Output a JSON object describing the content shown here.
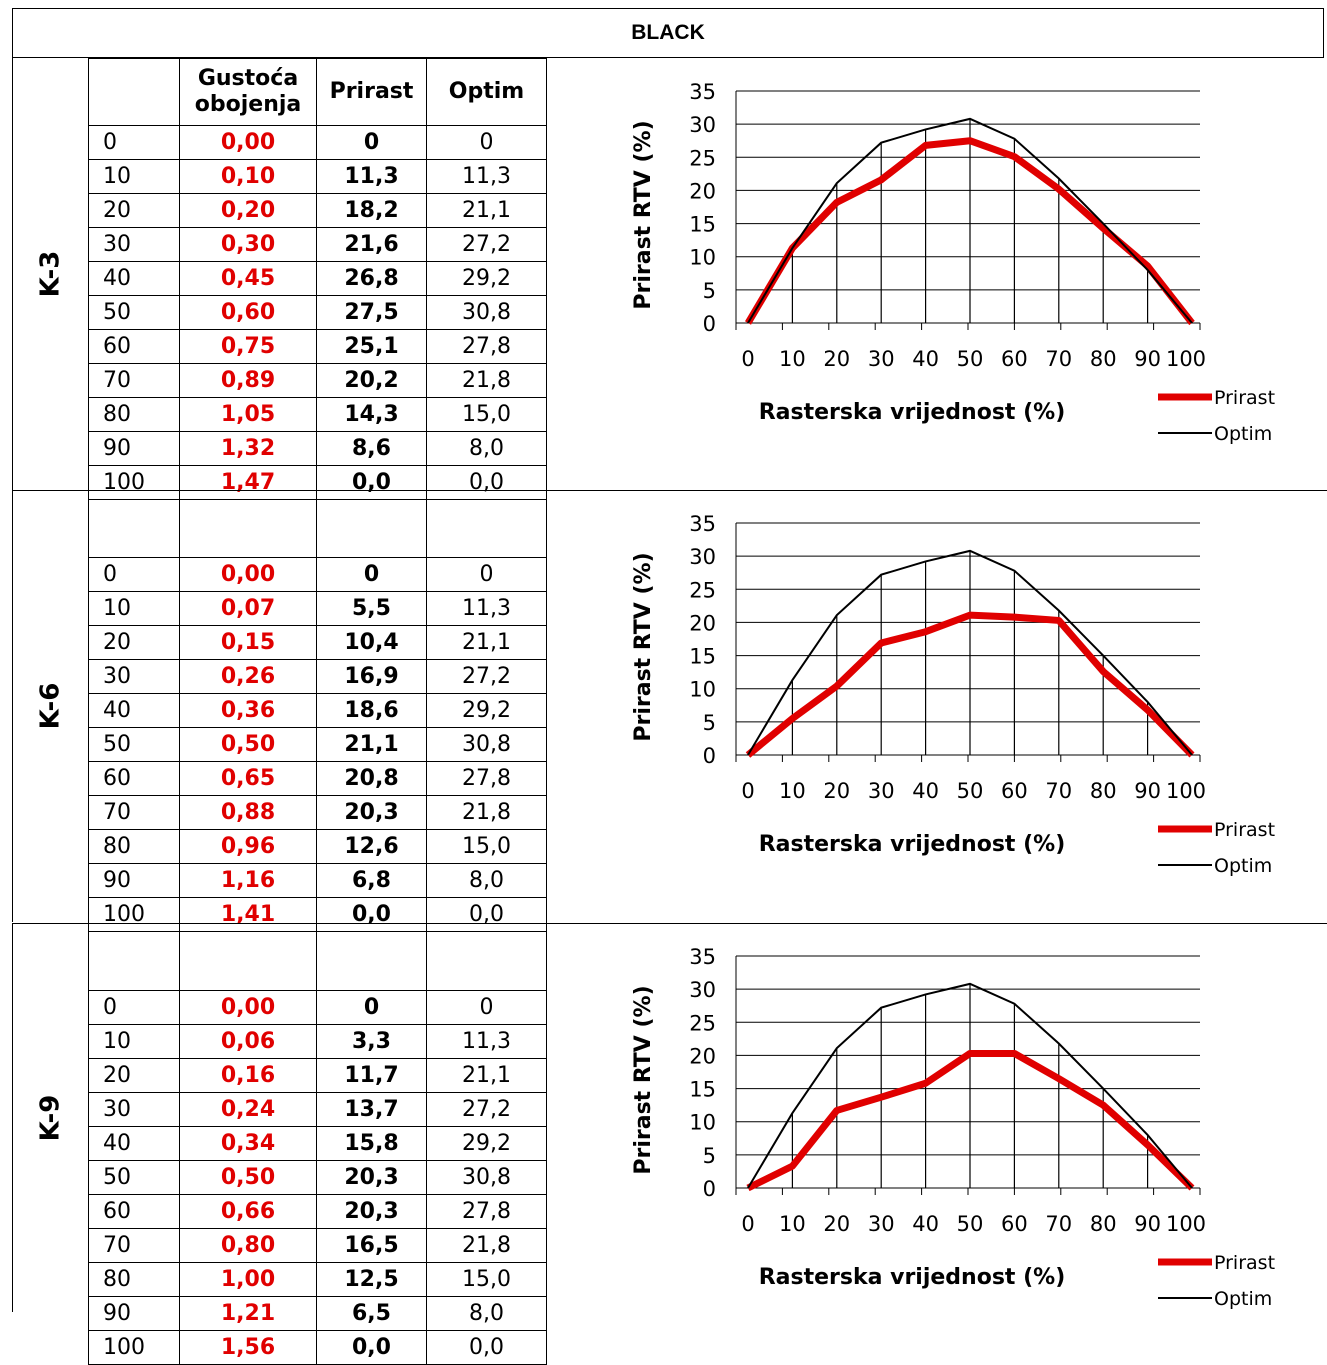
{
  "title": "BLACK",
  "headers": {
    "col1": "Gustoća obojenja",
    "col1_line1": "Gustoća",
    "col1_line2": "obojenja",
    "col2": "Prirast",
    "col3": "Optim"
  },
  "colors": {
    "prirast": "#e00000",
    "optim": "#000000"
  },
  "sections": [
    {
      "label": "K-3",
      "rows": [
        [
          "0",
          "0,00",
          "0",
          "0"
        ],
        [
          "10",
          "0,10",
          "11,3",
          "11,3"
        ],
        [
          "20",
          "0,20",
          "18,2",
          "21,1"
        ],
        [
          "30",
          "0,30",
          "21,6",
          "27,2"
        ],
        [
          "40",
          "0,45",
          "26,8",
          "29,2"
        ],
        [
          "50",
          "0,60",
          "27,5",
          "30,8"
        ],
        [
          "60",
          "0,75",
          "25,1",
          "27,8"
        ],
        [
          "70",
          "0,89",
          "20,2",
          "21,8"
        ],
        [
          "80",
          "1,05",
          "14,3",
          "15,0"
        ],
        [
          "90",
          "1,32",
          "8,6",
          "8,0"
        ],
        [
          "100",
          "1,47",
          "0,0",
          "0,0"
        ]
      ]
    },
    {
      "label": "K-6",
      "rows": [
        [
          "0",
          "0,00",
          "0",
          "0"
        ],
        [
          "10",
          "0,07",
          "5,5",
          "11,3"
        ],
        [
          "20",
          "0,15",
          "10,4",
          "21,1"
        ],
        [
          "30",
          "0,26",
          "16,9",
          "27,2"
        ],
        [
          "40",
          "0,36",
          "18,6",
          "29,2"
        ],
        [
          "50",
          "0,50",
          "21,1",
          "30,8"
        ],
        [
          "60",
          "0,65",
          "20,8",
          "27,8"
        ],
        [
          "70",
          "0,88",
          "20,3",
          "21,8"
        ],
        [
          "80",
          "0,96",
          "12,6",
          "15,0"
        ],
        [
          "90",
          "1,16",
          "6,8",
          "8,0"
        ],
        [
          "100",
          "1,41",
          "0,0",
          "0,0"
        ]
      ]
    },
    {
      "label": "K-9",
      "rows": [
        [
          "0",
          "0,00",
          "0",
          "0"
        ],
        [
          "10",
          "0,06",
          "3,3",
          "11,3"
        ],
        [
          "20",
          "0,16",
          "11,7",
          "21,1"
        ],
        [
          "30",
          "0,24",
          "13,7",
          "27,2"
        ],
        [
          "40",
          "0,34",
          "15,8",
          "29,2"
        ],
        [
          "50",
          "0,50",
          "20,3",
          "30,8"
        ],
        [
          "60",
          "0,66",
          "20,3",
          "27,8"
        ],
        [
          "70",
          "0,80",
          "16,5",
          "21,8"
        ],
        [
          "80",
          "1,00",
          "12,5",
          "15,0"
        ],
        [
          "90",
          "1,21",
          "6,5",
          "8,0"
        ],
        [
          "100",
          "1,56",
          "0,0",
          "0,0"
        ]
      ]
    }
  ],
  "chart_data": [
    {
      "type": "line",
      "x": [
        0,
        10,
        20,
        30,
        40,
        50,
        60,
        70,
        80,
        90,
        100
      ],
      "series": [
        {
          "name": "Prirast",
          "values": [
            0,
            11.3,
            18.2,
            21.6,
            26.8,
            27.5,
            25.1,
            20.2,
            14.3,
            8.6,
            0.0
          ]
        },
        {
          "name": "Optim",
          "values": [
            0,
            11.3,
            21.1,
            27.2,
            29.2,
            30.8,
            27.8,
            21.8,
            15.0,
            8.0,
            0.0
          ]
        }
      ],
      "xlabel": "Rasterska vrijednost (%)",
      "ylabel": "Prirast RTV (%)",
      "xticks": [
        "0",
        "10",
        "20",
        "30",
        "40",
        "50",
        "60",
        "70",
        "80",
        "90",
        "100"
      ],
      "yticks": [
        "0",
        "5",
        "10",
        "15",
        "20",
        "25",
        "30",
        "35"
      ],
      "ylim": [
        0,
        35
      ],
      "grid": true,
      "legend": "right"
    },
    {
      "type": "line",
      "x": [
        0,
        10,
        20,
        30,
        40,
        50,
        60,
        70,
        80,
        90,
        100
      ],
      "series": [
        {
          "name": "Prirast",
          "values": [
            0,
            5.5,
            10.4,
            16.9,
            18.6,
            21.1,
            20.8,
            20.3,
            12.6,
            6.8,
            0.0
          ]
        },
        {
          "name": "Optim",
          "values": [
            0,
            11.3,
            21.1,
            27.2,
            29.2,
            30.8,
            27.8,
            21.8,
            15.0,
            8.0,
            0.0
          ]
        }
      ],
      "xlabel": "Rasterska vrijednost (%)",
      "ylabel": "Prirast RTV (%)",
      "xticks": [
        "0",
        "10",
        "20",
        "30",
        "40",
        "50",
        "60",
        "70",
        "80",
        "90",
        "100"
      ],
      "yticks": [
        "0",
        "5",
        "10",
        "15",
        "20",
        "25",
        "30",
        "35"
      ],
      "ylim": [
        0,
        35
      ],
      "grid": true,
      "legend": "right"
    },
    {
      "type": "line",
      "x": [
        0,
        10,
        20,
        30,
        40,
        50,
        60,
        70,
        80,
        90,
        100
      ],
      "series": [
        {
          "name": "Prirast",
          "values": [
            0,
            3.3,
            11.7,
            13.7,
            15.8,
            20.3,
            20.3,
            16.5,
            12.5,
            6.5,
            0.0
          ]
        },
        {
          "name": "Optim",
          "values": [
            0,
            11.3,
            21.1,
            27.2,
            29.2,
            30.8,
            27.8,
            21.8,
            15.0,
            8.0,
            0.0
          ]
        }
      ],
      "xlabel": "Rasterska vrijednost (%)",
      "ylabel": "Prirast RTV (%)",
      "xticks": [
        "0",
        "10",
        "20",
        "30",
        "40",
        "50",
        "60",
        "70",
        "80",
        "90",
        "100"
      ],
      "yticks": [
        "0",
        "5",
        "10",
        "15",
        "20",
        "25",
        "30",
        "35"
      ],
      "ylim": [
        0,
        35
      ],
      "grid": true,
      "legend": "right"
    }
  ]
}
